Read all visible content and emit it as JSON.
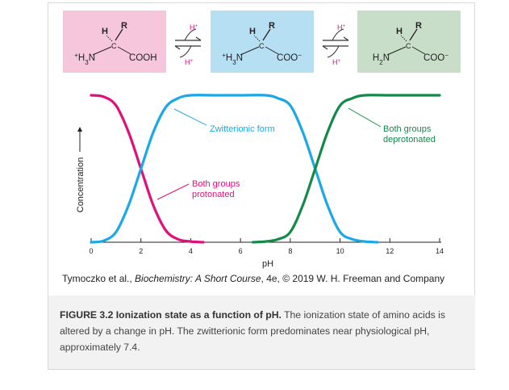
{
  "species": [
    {
      "top_labels": [
        "H",
        "R"
      ],
      "alpha": "C",
      "left_group": "+H3N",
      "right_group": "COOH",
      "fill": "#f6c6dc"
    },
    {
      "top_labels": [
        "H",
        "R"
      ],
      "alpha": "C",
      "left_group": "+H3N",
      "right_group": "COO−",
      "fill": "#b6dff3"
    },
    {
      "top_labels": [
        "H",
        "R"
      ],
      "alpha": "C",
      "left_group": "H2N",
      "right_group": "COO−",
      "fill": "#c8dec9"
    }
  ],
  "equilibria": [
    {
      "top": "H+",
      "bottom": "H+",
      "color": "#e0107a"
    },
    {
      "top": "H+",
      "bottom": "H+",
      "color": "#e0107a"
    }
  ],
  "colors": {
    "accent_magenta": "#e0107a",
    "curve_pink": "#e0107a",
    "curve_blue": "#1aa9e6",
    "curve_green": "#138a4a",
    "axis": "#222222",
    "annotation_pink": "#e0107a",
    "annotation_blue": "#1aa9e6",
    "annotation_green": "#138a4a"
  },
  "chart_data": {
    "type": "line",
    "xlabel": "pH",
    "ylabel": "Concentration",
    "xlim": [
      0,
      14
    ],
    "x_ticks": [
      0,
      2,
      4,
      6,
      8,
      10,
      12,
      14
    ],
    "series": [
      {
        "name": "Both groups protonated",
        "color": "#e0107a",
        "x": [
          0,
          0.5,
          1,
          1.5,
          2,
          2.5,
          3,
          3.5,
          4,
          4.5
        ],
        "y": [
          1.0,
          0.99,
          0.93,
          0.75,
          0.5,
          0.25,
          0.08,
          0.02,
          0.005,
          0.0
        ]
      },
      {
        "name": "Zwitterionic form",
        "color": "#1aa9e6",
        "x": [
          0,
          0.5,
          1,
          1.5,
          2,
          2.5,
          3,
          3.5,
          4,
          5,
          6,
          7,
          7.5,
          8,
          8.5,
          9,
          9.5,
          10,
          10.5,
          11,
          11.5
        ],
        "y": [
          0.0,
          0.01,
          0.07,
          0.25,
          0.5,
          0.75,
          0.92,
          0.98,
          1.0,
          1.0,
          1.0,
          1.0,
          0.98,
          0.93,
          0.75,
          0.5,
          0.25,
          0.07,
          0.02,
          0.005,
          0.0
        ]
      },
      {
        "name": "Both groups deprotonated",
        "color": "#138a4a",
        "x": [
          6.5,
          7,
          7.5,
          8,
          8.5,
          9,
          9.5,
          10,
          10.5,
          11,
          12,
          13,
          14
        ],
        "y": [
          0.0,
          0.005,
          0.02,
          0.07,
          0.25,
          0.5,
          0.75,
          0.93,
          0.98,
          1.0,
          1.0,
          1.0,
          1.0
        ]
      }
    ],
    "annotations": [
      "Zwitterionic form",
      "Both groups protonated",
      "Both groups deprotonated"
    ]
  },
  "credit": {
    "prefix": "Tymoczko et al., ",
    "book": "Biochemistry: A Short Course",
    "suffix": ", 4e, © 2019 W. H. Freeman and Company"
  },
  "caption": {
    "label": "FIGURE 3.2 Ionization state as a function of pH.",
    "text": " The ionization state of amino acids is altered by a change in pH. The zwitterionic form predominates near physiological pH, approximately 7.4."
  }
}
